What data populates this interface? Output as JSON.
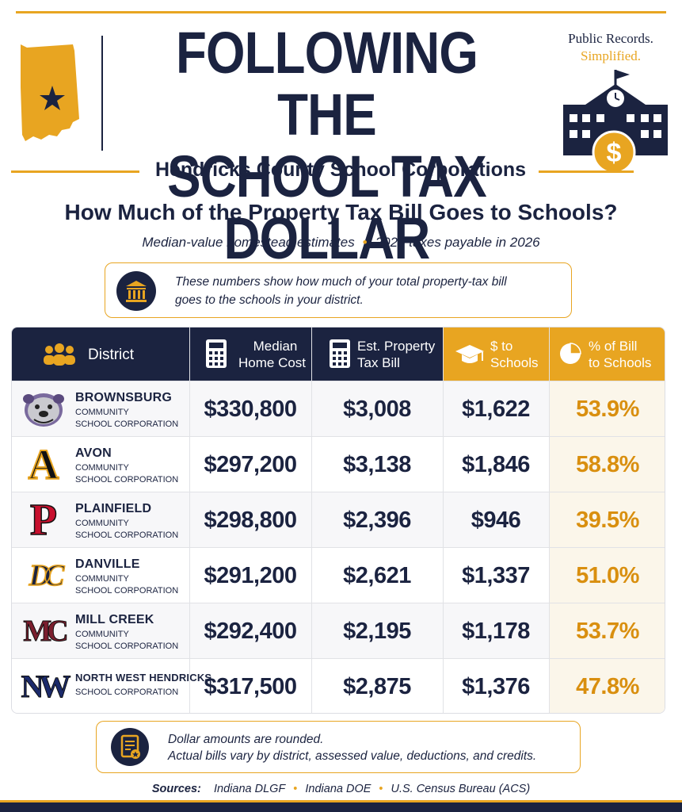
{
  "header": {
    "title_line1": "FOLLOWING THE",
    "title_line2": "SCHOOL TAX DOLLAR",
    "brand_line1": "Public Records.",
    "brand_line2": "Simplified.",
    "subtitle": "Hendricks County School Corporations",
    "question": "How Much of the Property Tax Bill Goes to Schools?",
    "meta_left": "Median-value homestead estimates",
    "meta_right": "2025 taxes payable in 2026"
  },
  "note": {
    "line1": "These numbers show how much of your total property-tax bill",
    "line2": "goes to the schools in your district."
  },
  "table": {
    "headers": {
      "district": "District",
      "home_cost_l1": "Median",
      "home_cost_l2": "Home Cost",
      "tax_bill_l1": "Est. Property",
      "tax_bill_l2": "Tax Bill",
      "to_schools_l1": "$ to",
      "to_schools_l2": "Schools",
      "pct_l1": "% of Bill",
      "pct_l2": "to Schools"
    },
    "rows": [
      {
        "name": "BROWNSBURG",
        "sub1": "COMMUNITY",
        "sub2": "SCHOOL CORPORATION",
        "home": "$330,800",
        "bill": "$3,008",
        "schools": "$1,622",
        "pct": "53.9%"
      },
      {
        "name": "AVON",
        "sub1": "COMMUNITY",
        "sub2": "SCHOOL CORPORATION",
        "home": "$297,200",
        "bill": "$3,138",
        "schools": "$1,846",
        "pct": "58.8%"
      },
      {
        "name": "PLAINFIELD",
        "sub1": "COMMUNITY",
        "sub2": "SCHOOL CORPORATION",
        "home": "$298,800",
        "bill": "$2,396",
        "schools": "$946",
        "pct": "39.5%"
      },
      {
        "name": "DANVILLE",
        "sub1": "COMMUNITY",
        "sub2": "SCHOOL CORPORATION",
        "home": "$291,200",
        "bill": "$2,621",
        "schools": "$1,337",
        "pct": "51.0%"
      },
      {
        "name": "MILL CREEK",
        "sub1": "COMMUNITY",
        "sub2": "SCHOOL CORPORATION",
        "home": "$292,400",
        "bill": "$2,195",
        "schools": "$1,178",
        "pct": "53.7%"
      },
      {
        "name": "NORTH WEST HENDRICKS",
        "sub1": "SCHOOL CORPORATION",
        "sub2": "",
        "home": "$317,500",
        "bill": "$2,875",
        "schools": "$1,376",
        "pct": "47.8%"
      }
    ]
  },
  "logos": {
    "avon": "A",
    "plainfield": "P",
    "danville": "DC",
    "millcreek": "MC",
    "northwest": "NW"
  },
  "footer": {
    "line1": "Dollar amounts are rounded.",
    "line2": "Actual bills vary by district, assessed value, deductions, and credits.",
    "sources_label": "Sources:",
    "source1": "Indiana DLGF",
    "source2": "Indiana DOE",
    "source3": "U.S. Census Bureau (ACS)"
  },
  "colors": {
    "navy": "#1b2340",
    "gold": "#e8a521"
  }
}
